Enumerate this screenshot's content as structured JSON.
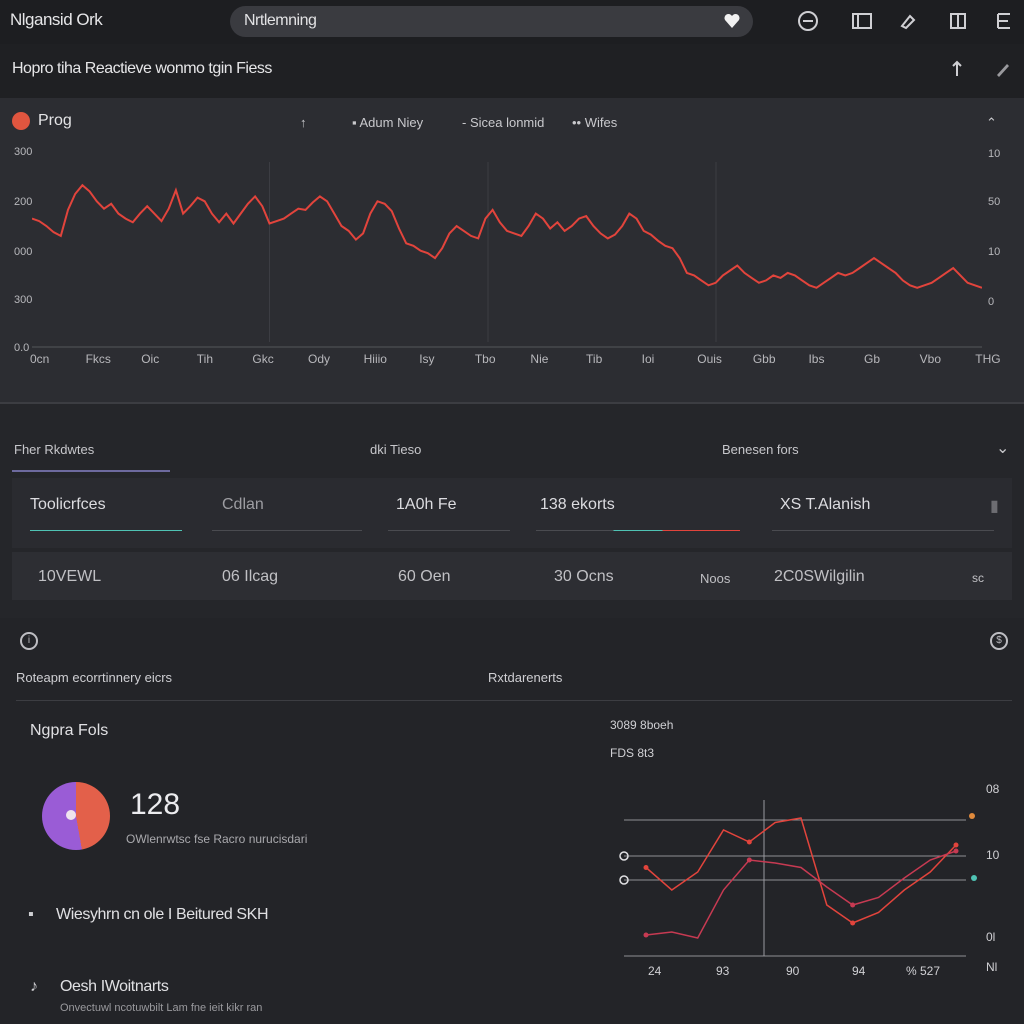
{
  "header": {
    "app_title": "Nlgansid Ork",
    "search_value": "Nrtlemning",
    "icons": [
      "gauge-icon",
      "window-icon",
      "pen-icon",
      "panel-icon",
      "menu-icon"
    ]
  },
  "subheader": {
    "title": "Hopro tiha Reactieve wonmo tgin Fiess",
    "icons": [
      "upload-icon",
      "edit-icon"
    ]
  },
  "main_chart": {
    "name": "Prog",
    "legend": [
      "Adum Niey",
      "Sicea lonmid",
      "Wifes"
    ],
    "colors": {
      "line": "#e2443c",
      "grid": "#3c3d43",
      "logo": "#e0553f"
    },
    "y_left_labels": [
      "300",
      "200",
      "000",
      "300",
      "0.0"
    ],
    "y_right_labels": [
      "10",
      "50",
      "10",
      "0",
      ""
    ],
    "x_labels": [
      "0cn",
      "Fkcs",
      "Oic",
      "Tih",
      "Gkc",
      "Ody",
      "Hiiio",
      "Isy",
      "Tbo",
      "Nie",
      "Tib",
      "Ioi",
      "Ouis",
      "Gbb",
      "Ibs",
      "Gb",
      "Vbo",
      "THG"
    ],
    "chart_data": {
      "type": "line",
      "title": "",
      "xlabel": "",
      "ylabel": "",
      "series": [
        {
          "values": [
            258,
            256,
            252,
            247,
            244,
            265,
            278,
            285,
            280,
            272,
            266,
            270,
            262,
            258,
            255,
            262,
            268,
            262,
            256,
            266,
            281,
            262,
            268,
            275,
            272,
            262,
            255,
            262,
            254,
            262,
            270,
            276,
            268,
            254,
            256,
            258,
            262,
            266,
            265,
            271,
            276,
            272,
            262,
            252,
            248,
            241,
            246,
            262,
            272,
            270,
            264,
            250,
            238,
            236,
            232,
            230,
            226,
            234,
            246,
            252,
            248,
            244,
            242,
            258,
            265,
            255,
            248,
            246,
            244,
            252,
            262,
            258,
            250,
            255,
            248,
            252,
            258,
            260,
            252,
            246,
            242,
            245,
            252,
            262,
            258,
            248,
            245,
            240,
            236,
            234,
            226,
            214,
            212,
            208,
            204,
            206,
            212,
            216,
            220,
            214,
            210,
            206,
            208,
            212,
            210,
            214,
            212,
            208,
            204,
            202,
            206,
            210,
            214,
            212,
            214,
            218,
            222,
            226,
            222,
            218,
            214,
            208,
            204,
            202,
            204,
            206,
            210,
            214,
            218,
            212,
            206,
            204,
            202
          ]
        }
      ],
      "ylim": [
        150,
        320
      ],
      "grid": true
    }
  },
  "tabs": {
    "items": [
      "Fher Rkdwtes",
      "dki Tieso",
      "Benesen fors"
    ]
  },
  "filters": {
    "items": [
      "Toolicrfces",
      "Cdlan",
      "1A0h Fe",
      "138 ekorts",
      "XS T.Alanish"
    ],
    "colors": {
      "accent_teal": "#4fc3b4",
      "accent_red": "#e2443c"
    }
  },
  "stats": {
    "items": [
      "10VEWL",
      "06 Ilcag",
      "60 Oen",
      "30 Ocns",
      "Noos",
      "2C0SWilgilin",
      "sc"
    ]
  },
  "bottom": {
    "left_label": "Roteapm ecorrtinnery eicrs",
    "right_label": "Rxtdarenerts",
    "card_title": "Ngpra Fols",
    "big_number": "128",
    "big_caption": "OWlenrwtsc fse Racro nurucisdari",
    "list": [
      {
        "title": "Wiesyhrn cn ole I Beitured SKH",
        "sub": ""
      },
      {
        "title": "Oesh IWoitnarts",
        "sub": "Onvectuwl ncotuwbilt Lam fne ieit kikr ran"
      }
    ],
    "mini_chart": {
      "header1": "3089 8boeh",
      "header2": "FDS 8t3",
      "y_right": [
        "08",
        "10",
        "0l",
        "Nl"
      ],
      "x_labels": [
        "24",
        "93",
        "90",
        "94",
        "%",
        "527"
      ],
      "chart_data": {
        "type": "line",
        "title": "",
        "series": [
          {
            "values": [
              55,
              40,
              52,
              80,
              72,
              85,
              88,
              30,
              18,
              25,
              40,
              52,
              70
            ]
          },
          {
            "values": [
              10,
              12,
              8,
              40,
              60,
              58,
              55,
              42,
              30,
              35,
              48,
              60,
              66
            ]
          }
        ],
        "ylim": [
          0,
          100
        ]
      }
    }
  }
}
